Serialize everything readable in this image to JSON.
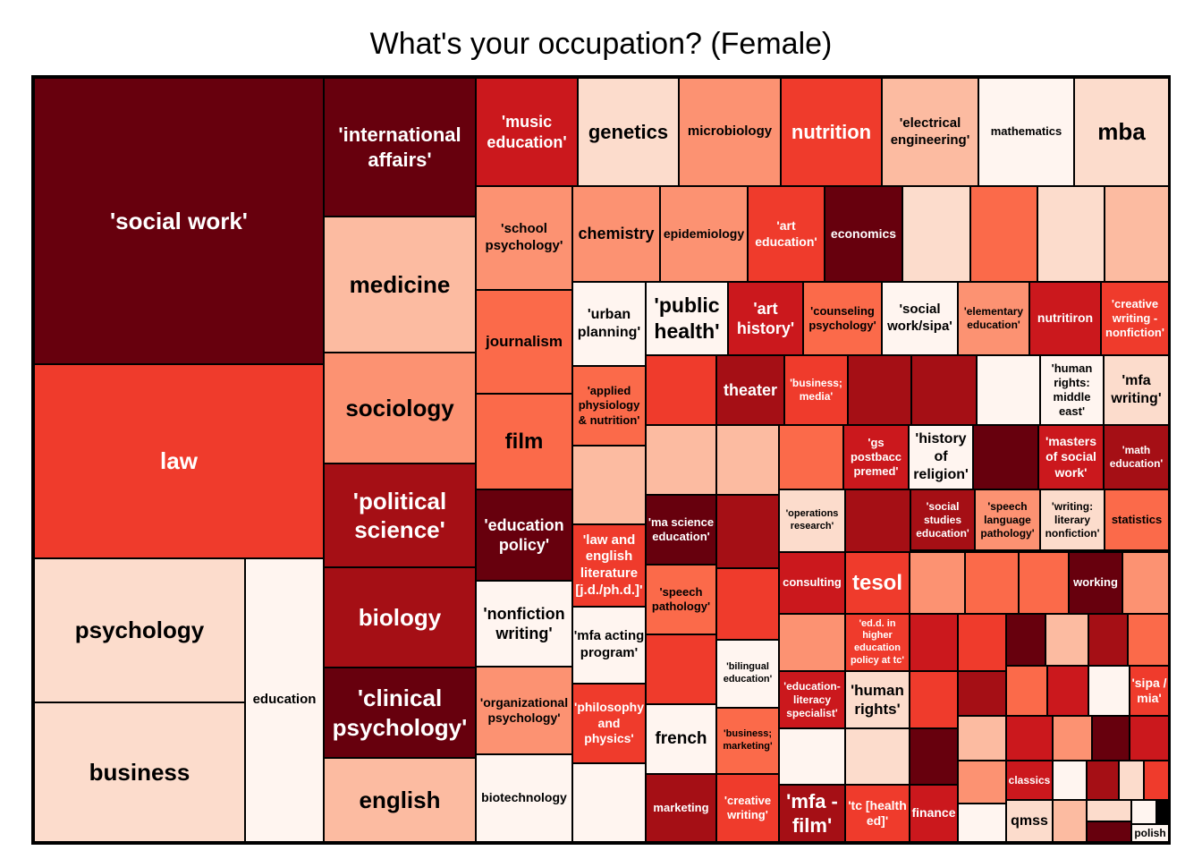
{
  "chart_data": {
    "type": "treemap",
    "title": "What's your occupation? (Female)",
    "color_scale": [
      "#fff5f0",
      "#fcdccc",
      "#fcbba1",
      "#fc9272",
      "#fb6a4a",
      "#ef3b2c",
      "#cb181d",
      "#a50f15",
      "#67000d"
    ],
    "items": [
      {
        "label": "'social work'",
        "level": 8
      },
      {
        "label": "law",
        "level": 5
      },
      {
        "label": "psychology",
        "level": 1
      },
      {
        "label": "business",
        "level": 1
      },
      {
        "label": "education",
        "level": 0
      },
      {
        "label": "'international affairs'",
        "level": 8
      },
      {
        "label": "medicine",
        "level": 2
      },
      {
        "label": "sociology",
        "level": 3
      },
      {
        "label": "'political science'",
        "level": 7
      },
      {
        "label": "biology",
        "level": 7
      },
      {
        "label": "'clinical psychology'",
        "level": 8
      },
      {
        "label": "english",
        "level": 2
      },
      {
        "label": "'music education'",
        "level": 6
      },
      {
        "label": "'school psychology'",
        "level": 3
      },
      {
        "label": "journalism",
        "level": 4
      },
      {
        "label": "film",
        "level": 4
      },
      {
        "label": "'education policy'",
        "level": 8
      },
      {
        "label": "'nonfiction writing'",
        "level": 0
      },
      {
        "label": "'organizational psychology'",
        "level": 3
      },
      {
        "label": "biotechnology",
        "level": 0
      },
      {
        "label": "genetics",
        "level": 1
      },
      {
        "label": "microbiology",
        "level": 3
      },
      {
        "label": "nutrition",
        "level": 5
      },
      {
        "label": "'electrical engineering'",
        "level": 2
      },
      {
        "label": "mathematics",
        "level": 0
      },
      {
        "label": "mba",
        "level": 1
      },
      {
        "label": "chemistry",
        "level": 3
      },
      {
        "label": "epidemiology",
        "level": 3
      },
      {
        "label": "'art education'",
        "level": 5
      },
      {
        "label": "economics",
        "level": 8
      },
      {
        "label": "",
        "level": 1
      },
      {
        "label": "",
        "level": 4
      },
      {
        "label": "",
        "level": 1
      },
      {
        "label": "",
        "level": 2
      },
      {
        "label": "'urban planning'",
        "level": 0
      },
      {
        "label": "'public health'",
        "level": 0
      },
      {
        "label": "'art history'",
        "level": 6
      },
      {
        "label": "'counseling psychology'",
        "level": 4
      },
      {
        "label": "'social work/sipa'",
        "level": 0
      },
      {
        "label": "'elementary education'",
        "level": 3
      },
      {
        "label": "nutritiron",
        "level": 6
      },
      {
        "label": "'creative writing - nonfiction'",
        "level": 5
      },
      {
        "label": "'applied physiology & nutrition'",
        "level": 4
      },
      {
        "label": "",
        "level": 2
      },
      {
        "label": "'law and english literature [j.d./ph.d.]'",
        "level": 5
      },
      {
        "label": "'mfa acting program'",
        "level": 0
      },
      {
        "label": "'philosophy and physics'",
        "level": 5
      },
      {
        "label": "",
        "level": 0
      },
      {
        "label": "",
        "level": 5
      },
      {
        "label": "theater",
        "level": 7
      },
      {
        "label": "'business; media'",
        "level": 5
      },
      {
        "label": "",
        "level": 7
      },
      {
        "label": "",
        "level": 7
      },
      {
        "label": "",
        "level": 0
      },
      {
        "label": "'human rights: middle east'",
        "level": 0
      },
      {
        "label": "'mfa writing'",
        "level": 1
      },
      {
        "label": "",
        "level": 2
      },
      {
        "label": "",
        "level": 2
      },
      {
        "label": "",
        "level": 4
      },
      {
        "label": "'gs postbacc premed'",
        "level": 6
      },
      {
        "label": "'history of religion'",
        "level": 0
      },
      {
        "label": "",
        "level": 8
      },
      {
        "label": "'masters of social work'",
        "level": 6
      },
      {
        "label": "'math education'",
        "level": 7
      },
      {
        "label": "'ma science education'",
        "level": 8
      },
      {
        "label": "",
        "level": 7
      },
      {
        "label": "'speech pathology'",
        "level": 4
      },
      {
        "label": "",
        "level": 5
      },
      {
        "label": "",
        "level": 5
      },
      {
        "label": "'bilingual education'",
        "level": 0
      },
      {
        "label": "french",
        "level": 0
      },
      {
        "label": "'business; marketing'",
        "level": 4
      },
      {
        "label": "marketing",
        "level": 7
      },
      {
        "label": "'creative writing'",
        "level": 5
      },
      {
        "label": "'operations research'",
        "level": 1
      },
      {
        "label": "",
        "level": 7
      },
      {
        "label": "'social studies education'",
        "level": 7
      },
      {
        "label": "'speech language pathology'",
        "level": 3
      },
      {
        "label": "'writing: literary nonfiction'",
        "level": 1
      },
      {
        "label": "statistics",
        "level": 4
      },
      {
        "label": "consulting",
        "level": 6
      },
      {
        "label": "tesol",
        "level": 5
      },
      {
        "label": "",
        "level": 3
      },
      {
        "label": "",
        "level": 4
      },
      {
        "label": "",
        "level": 4
      },
      {
        "label": "working",
        "level": 8
      },
      {
        "label": "",
        "level": 3
      },
      {
        "label": "",
        "level": 3
      },
      {
        "label": "'ed.d. in higher education policy at tc'",
        "level": 5
      },
      {
        "label": "",
        "level": 6
      },
      {
        "label": "",
        "level": 5
      },
      {
        "label": "",
        "level": 8
      },
      {
        "label": "",
        "level": 2
      },
      {
        "label": "",
        "level": 7
      },
      {
        "label": "",
        "level": 4
      },
      {
        "label": "'education-literacy specialist'",
        "level": 6
      },
      {
        "label": "'human rights'",
        "level": 1
      },
      {
        "label": "",
        "level": 5
      },
      {
        "label": "",
        "level": 7
      },
      {
        "label": "",
        "level": 4
      },
      {
        "label": "",
        "level": 6
      },
      {
        "label": "",
        "level": 0
      },
      {
        "label": "'sipa / mia'",
        "level": 5
      },
      {
        "label": "",
        "level": 0
      },
      {
        "label": "",
        "level": 1
      },
      {
        "label": "",
        "level": 8
      },
      {
        "label": "",
        "level": 2
      },
      {
        "label": "",
        "level": 6
      },
      {
        "label": "",
        "level": 3
      },
      {
        "label": "",
        "level": 8
      },
      {
        "label": "",
        "level": 6
      },
      {
        "label": "'mfa -film'",
        "level": 7
      },
      {
        "label": "'tc [health ed]'",
        "level": 5
      },
      {
        "label": "finance",
        "level": 6
      },
      {
        "label": "",
        "level": 3
      },
      {
        "label": "classics",
        "level": 6
      },
      {
        "label": "",
        "level": 0
      },
      {
        "label": "",
        "level": 7
      },
      {
        "label": "",
        "level": 1
      },
      {
        "label": "",
        "level": 5
      },
      {
        "label": "",
        "level": 0
      },
      {
        "label": "qmss",
        "level": 1
      },
      {
        "label": "",
        "level": 2
      },
      {
        "label": "",
        "level": 1
      },
      {
        "label": "",
        "level": 8
      },
      {
        "label": "",
        "level": 0
      },
      {
        "label": "polish",
        "level": 0
      },
      {
        "label": "",
        "level": 7
      },
      {
        "label": "",
        "level": 8
      }
    ]
  }
}
